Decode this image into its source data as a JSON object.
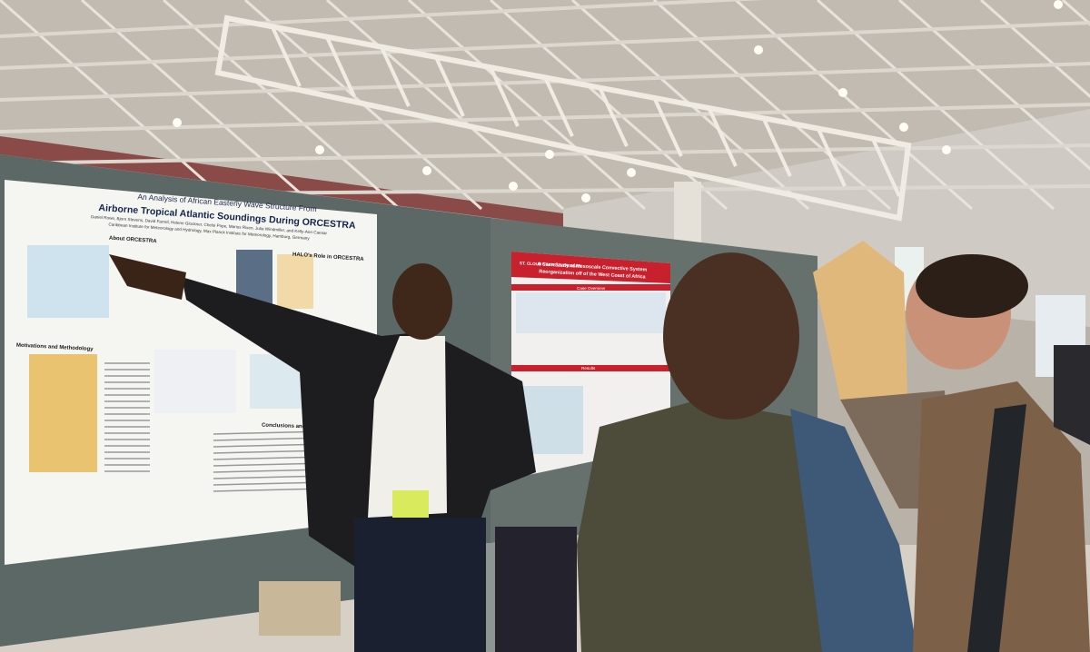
{
  "posters": [
    {
      "title_line1": "An Analysis of African Easterly Wave Structure From",
      "title_line2": "Airborne Tropical Atlantic Soundings During ORCESTRA",
      "authors": "Daniel Rowe, Bjorn Stevens, David Farrell, Helene Glockner, Chelsi Pope, Marius Rixen, Julia Windmiller, and Kelly-Ann Caesar",
      "affiliation": "Caribbean Institute for Meteorology and Hydrology, Max Planck Institute for Meteorology, Hamburg, Germany",
      "sections": [
        "About ORCESTRA",
        "HALO's Role in ORCESTRA",
        "Motivations and Methodology",
        "Conclusions and Going Forward"
      ]
    },
    {
      "header": "ST. CLOUD STATE UNIVERSITY",
      "title_line1": "A Case Study of Mesoscale Convective System",
      "title_line2": "Reorganization off of the West Coast of Africa",
      "sections": [
        "Case Overview",
        "Results"
      ]
    }
  ]
}
